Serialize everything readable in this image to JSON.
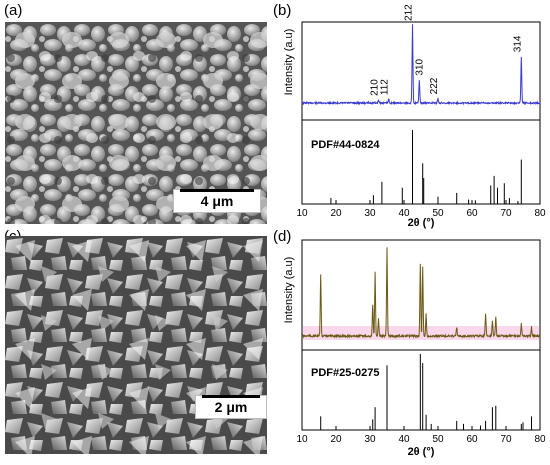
{
  "panels": {
    "a": {
      "label": "(a)",
      "scale_text": "4 μm"
    },
    "b": {
      "label": "(b)"
    },
    "c": {
      "label": "(c)",
      "scale_text": "2 μm"
    },
    "d": {
      "label": "(d)"
    }
  },
  "colors": {
    "xrd_b": "#3b3bd0",
    "xrd_d": "#6a5a16",
    "xrd_d_fill": "#f1b2d6",
    "ref_line": "#000000"
  },
  "chart_data": [
    {
      "type": "line",
      "panel": "b",
      "xlabel": "2θ (°)",
      "ylabel": "Intensity (a.u)",
      "xlim": [
        10,
        80
      ],
      "xticks": [
        10,
        20,
        30,
        40,
        50,
        60,
        70,
        80
      ],
      "reference_label": "PDF#44-0824",
      "peak_labels": [
        {
          "x": 32.5,
          "text": "210"
        },
        {
          "x": 35.5,
          "text": "112"
        },
        {
          "x": 42.5,
          "text": "212"
        },
        {
          "x": 44.5,
          "text": "310"
        },
        {
          "x": 50.0,
          "text": "222"
        },
        {
          "x": 74.5,
          "text": "314"
        }
      ],
      "series": [
        {
          "values": [
            [
              32.5,
              0.04
            ],
            [
              35.5,
              0.05
            ],
            [
              42.5,
              1.0
            ],
            [
              44.5,
              0.3
            ],
            [
              50.0,
              0.06
            ],
            [
              74.5,
              0.6
            ]
          ]
        }
      ],
      "reference_peaks": [
        [
          18.5,
          0.08
        ],
        [
          31.0,
          0.12
        ],
        [
          33.5,
          0.3
        ],
        [
          39.5,
          0.22
        ],
        [
          42.5,
          1.0
        ],
        [
          45.5,
          0.55
        ],
        [
          45.8,
          0.35
        ],
        [
          50.0,
          0.1
        ],
        [
          55.5,
          0.15
        ],
        [
          59.0,
          0.06
        ],
        [
          61.0,
          0.05
        ],
        [
          65.5,
          0.25
        ],
        [
          66.5,
          0.38
        ],
        [
          67.5,
          0.22
        ],
        [
          69.5,
          0.28
        ],
        [
          71.0,
          0.08
        ],
        [
          73.5,
          0.04
        ],
        [
          74.5,
          0.6
        ]
      ]
    },
    {
      "type": "line",
      "panel": "d",
      "xlabel": "2θ (°)",
      "ylabel": "Intensity (a.u)",
      "xlim": [
        10,
        80
      ],
      "xticks": [
        10,
        20,
        30,
        40,
        50,
        60,
        70,
        80
      ],
      "reference_label": "PDF#25-0275",
      "series": [
        {
          "values": [
            [
              15.5,
              0.7
            ],
            [
              30.8,
              0.35
            ],
            [
              31.5,
              0.72
            ],
            [
              32.5,
              0.2
            ],
            [
              35.0,
              1.0
            ],
            [
              44.8,
              0.82
            ],
            [
              45.5,
              0.78
            ],
            [
              46.5,
              0.25
            ],
            [
              55.5,
              0.1
            ],
            [
              64.0,
              0.25
            ],
            [
              66.0,
              0.18
            ],
            [
              67.0,
              0.22
            ],
            [
              74.5,
              0.14
            ],
            [
              77.5,
              0.1
            ]
          ]
        }
      ],
      "reference_peaks": [
        [
          15.5,
          0.18
        ],
        [
          30.8,
          0.14
        ],
        [
          31.5,
          0.3
        ],
        [
          35.0,
          0.85
        ],
        [
          44.8,
          1.0
        ],
        [
          45.5,
          0.88
        ],
        [
          46.5,
          0.2
        ],
        [
          48.0,
          0.08
        ],
        [
          55.5,
          0.12
        ],
        [
          57.5,
          0.08
        ],
        [
          62.5,
          0.06
        ],
        [
          64.0,
          0.12
        ],
        [
          66.0,
          0.3
        ],
        [
          67.0,
          0.32
        ],
        [
          74.5,
          0.08
        ],
        [
          75.0,
          0.1
        ],
        [
          77.5,
          0.18
        ]
      ]
    }
  ]
}
